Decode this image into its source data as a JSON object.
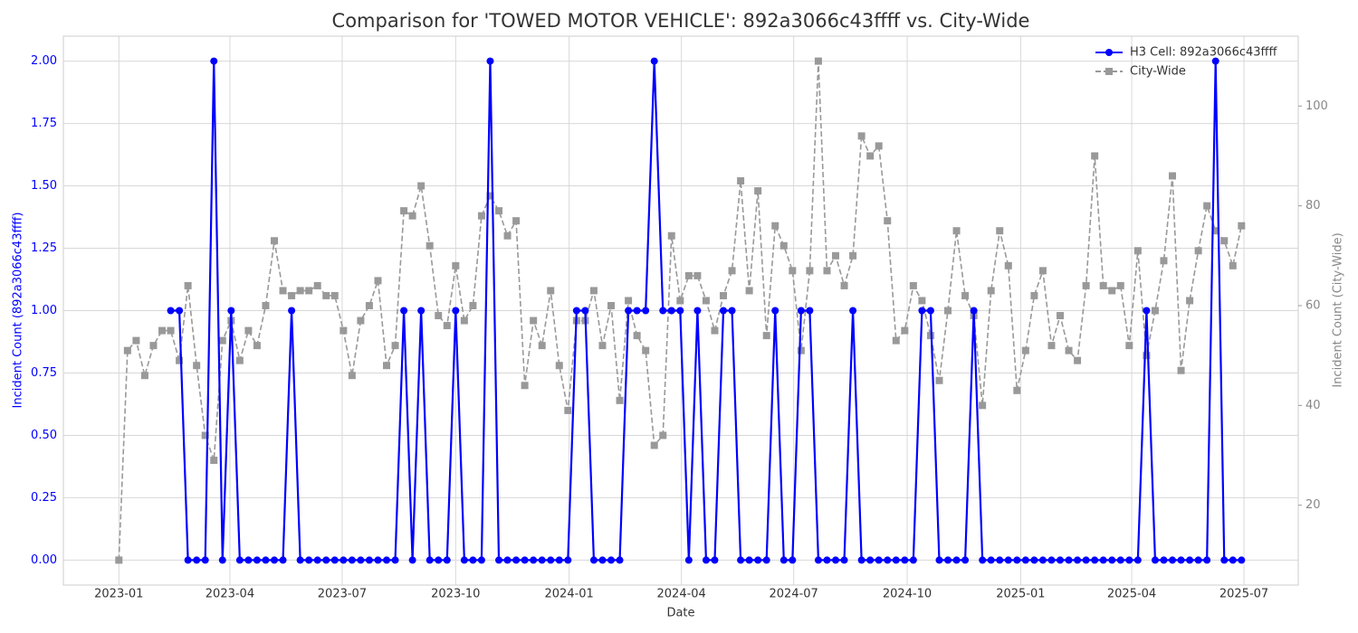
{
  "chart_data": {
    "type": "line",
    "title": "Comparison for 'TOWED MOTOR VEHICLE': 892a3066c43ffff vs. City-Wide",
    "x_label": "Date",
    "y_label": "Incident Count (892a3066c43ffff)",
    "y2_label": "Incident Count (City-Wide)",
    "x": [
      "2023-01-01",
      "2023-01-08",
      "2023-01-15",
      "2023-01-22",
      "2023-01-29",
      "2023-02-05",
      "2023-02-12",
      "2023-02-19",
      "2023-02-26",
      "2023-03-05",
      "2023-03-12",
      "2023-03-19",
      "2023-03-26",
      "2023-04-02",
      "2023-04-09",
      "2023-04-16",
      "2023-04-23",
      "2023-04-30",
      "2023-05-07",
      "2023-05-14",
      "2023-05-21",
      "2023-05-28",
      "2023-06-04",
      "2023-06-11",
      "2023-06-18",
      "2023-06-25",
      "2023-07-02",
      "2023-07-09",
      "2023-07-16",
      "2023-07-23",
      "2023-07-30",
      "2023-08-06",
      "2023-08-13",
      "2023-08-20",
      "2023-08-27",
      "2023-09-03",
      "2023-09-10",
      "2023-09-17",
      "2023-09-24",
      "2023-10-01",
      "2023-10-08",
      "2023-10-15",
      "2023-10-22",
      "2023-10-29",
      "2023-11-05",
      "2023-11-12",
      "2023-11-19",
      "2023-11-26",
      "2023-12-03",
      "2023-12-10",
      "2023-12-17",
      "2023-12-24",
      "2023-12-31",
      "2024-01-07",
      "2024-01-14",
      "2024-01-21",
      "2024-01-28",
      "2024-02-04",
      "2024-02-11",
      "2024-02-18",
      "2024-02-25",
      "2024-03-03",
      "2024-03-10",
      "2024-03-17",
      "2024-03-24",
      "2024-03-31",
      "2024-04-07",
      "2024-04-14",
      "2024-04-21",
      "2024-04-28",
      "2024-05-05",
      "2024-05-12",
      "2024-05-19",
      "2024-05-26",
      "2024-06-02",
      "2024-06-09",
      "2024-06-16",
      "2024-06-23",
      "2024-06-30",
      "2024-07-07",
      "2024-07-14",
      "2024-07-21",
      "2024-07-28",
      "2024-08-04",
      "2024-08-11",
      "2024-08-18",
      "2024-08-25",
      "2024-09-01",
      "2024-09-08",
      "2024-09-15",
      "2024-09-22",
      "2024-09-29",
      "2024-10-06",
      "2024-10-13",
      "2024-10-20",
      "2024-10-27",
      "2024-11-03",
      "2024-11-10",
      "2024-11-17",
      "2024-11-24",
      "2024-12-01",
      "2024-12-08",
      "2024-12-15",
      "2024-12-22",
      "2024-12-29",
      "2025-01-05",
      "2025-01-12",
      "2025-01-19",
      "2025-01-26",
      "2025-02-02",
      "2025-02-09",
      "2025-02-16",
      "2025-02-23",
      "2025-03-02",
      "2025-03-09",
      "2025-03-16",
      "2025-03-23",
      "2025-03-30",
      "2025-04-06",
      "2025-04-13",
      "2025-04-20",
      "2025-04-27",
      "2025-05-04",
      "2025-05-11",
      "2025-05-18",
      "2025-05-25",
      "2025-06-01",
      "2025-06-08",
      "2025-06-15",
      "2025-06-22",
      "2025-06-29"
    ],
    "series": [
      {
        "name": "H3 Cell: 892a3066c43ffff",
        "color": "#0000ff",
        "marker": "circle",
        "linestyle": "solid",
        "values": [
          null,
          null,
          null,
          null,
          null,
          null,
          1,
          1,
          0,
          0,
          0,
          2,
          0,
          1,
          0,
          0,
          0,
          0,
          0,
          0,
          1,
          0,
          0,
          0,
          0,
          0,
          0,
          0,
          0,
          0,
          0,
          0,
          0,
          1,
          0,
          1,
          0,
          0,
          0,
          1,
          0,
          0,
          0,
          2,
          0,
          0,
          0,
          0,
          0,
          0,
          0,
          0,
          0,
          1,
          1,
          0,
          0,
          0,
          0,
          1,
          1,
          1,
          2,
          1,
          1,
          1,
          0,
          1,
          0,
          0,
          1,
          1,
          0,
          0,
          0,
          0,
          1,
          0,
          0,
          1,
          1,
          0,
          0,
          0,
          0,
          1,
          0,
          0,
          0,
          0,
          0,
          0,
          0,
          1,
          1,
          0,
          0,
          0,
          0,
          1,
          0,
          0,
          0,
          0,
          0,
          0,
          0,
          0,
          0,
          0,
          0,
          0,
          0,
          0,
          0,
          0,
          0,
          0,
          0,
          1,
          0,
          0,
          0,
          0,
          0,
          0,
          0,
          2,
          0,
          0,
          0
        ]
      },
      {
        "name": "City-Wide",
        "color": "#999999",
        "marker": "square",
        "linestyle": "dashed",
        "axis": "y2",
        "values": [
          9,
          51,
          53,
          46,
          52,
          55,
          55,
          49,
          64,
          48,
          34,
          29,
          53,
          57,
          49,
          55,
          52,
          60,
          73,
          63,
          62,
          63,
          63,
          64,
          62,
          62,
          55,
          46,
          57,
          60,
          65,
          48,
          52,
          79,
          78,
          84,
          72,
          58,
          56,
          68,
          57,
          60,
          78,
          82,
          79,
          74,
          77,
          44,
          57,
          52,
          63,
          48,
          39,
          57,
          57,
          63,
          52,
          60,
          41,
          61,
          54,
          51,
          32,
          34,
          74,
          61,
          66,
          66,
          61,
          55,
          62,
          67,
          85,
          63,
          83,
          54,
          76,
          72,
          67,
          51,
          67,
          109,
          67,
          70,
          64,
          70,
          94,
          90,
          92,
          77,
          53,
          55,
          64,
          61,
          54,
          45,
          59,
          75,
          62,
          58,
          40,
          63,
          75,
          68,
          43,
          51,
          62,
          67,
          52,
          58,
          51,
          49,
          64,
          90,
          64,
          63,
          64,
          52,
          71,
          50,
          59,
          69,
          86,
          47,
          61,
          71,
          80,
          75,
          73,
          68,
          76
        ]
      }
    ],
    "xlim": [
      "2022-11-17",
      "2025-08-14"
    ],
    "xticks": [
      "2023-01",
      "2023-04",
      "2023-07",
      "2023-10",
      "2024-01",
      "2024-04",
      "2024-07",
      "2024-10",
      "2025-01",
      "2025-04",
      "2025-07"
    ],
    "ylim": [
      -0.1,
      2.1
    ],
    "yticks": [
      {
        "value": 0,
        "label": "0.00"
      },
      {
        "value": 0.25,
        "label": "0.25"
      },
      {
        "value": 0.5,
        "label": "0.50"
      },
      {
        "value": 0.75,
        "label": "0.75"
      },
      {
        "value": 1,
        "label": "1.00"
      },
      {
        "value": 1.25,
        "label": "1.25"
      },
      {
        "value": 1.5,
        "label": "1.50"
      },
      {
        "value": 1.75,
        "label": "1.75"
      },
      {
        "value": 2,
        "label": "2.00"
      }
    ],
    "y2lim": [
      4,
      114
    ],
    "y2ticks": [
      20,
      40,
      60,
      80,
      100
    ],
    "grid": true,
    "legend": "upper right"
  }
}
